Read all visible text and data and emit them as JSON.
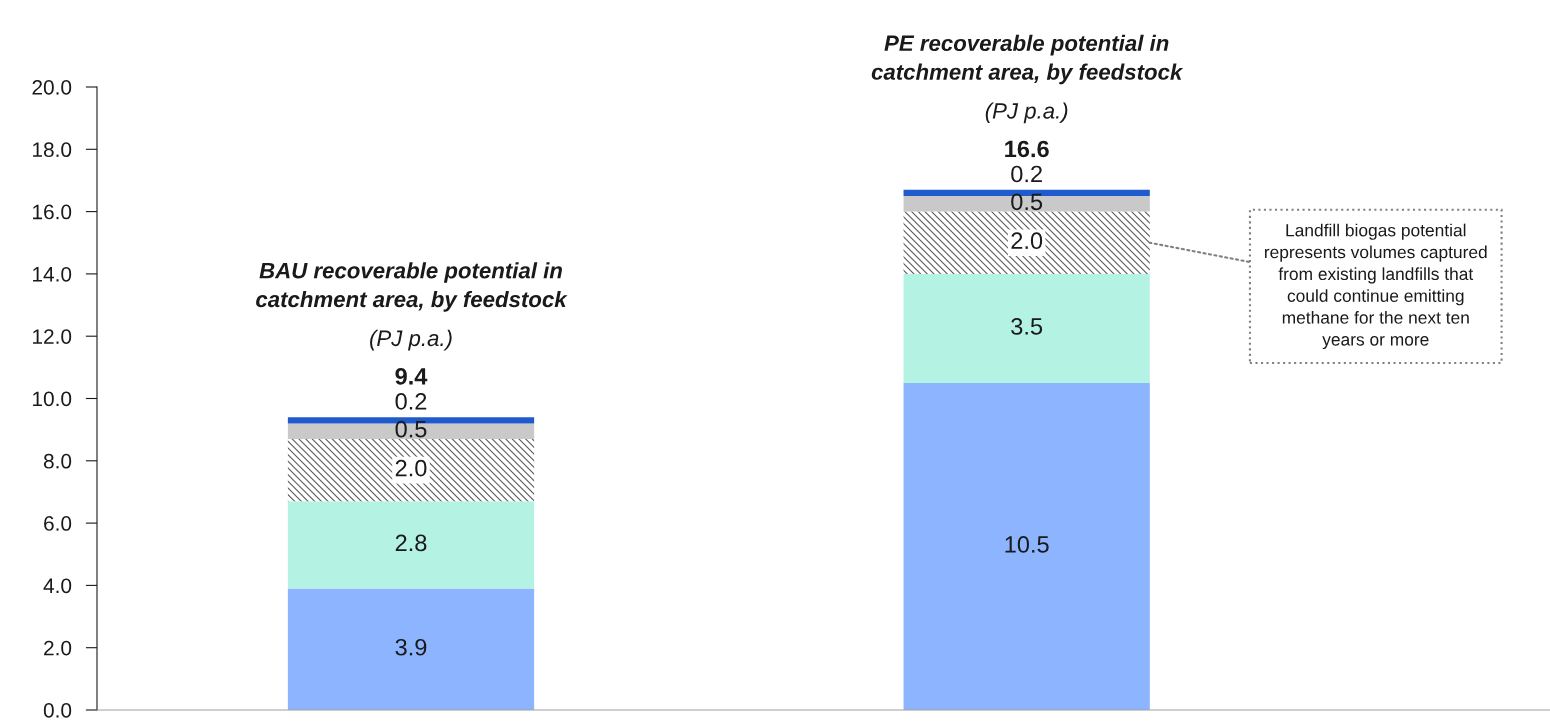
{
  "chart_data": {
    "type": "bar",
    "stacked": true,
    "categories": [
      null,
      null
    ],
    "series": [
      {
        "color": "#8cb4ff",
        "values": [
          3.9,
          10.5
        ],
        "value_labels": [
          "3.9",
          "10.5"
        ]
      },
      {
        "color": "#b4f2e4",
        "values": [
          2.8,
          3.5
        ],
        "value_labels": [
          "2.8",
          "3.5"
        ]
      },
      {
        "color": "#595959",
        "values": [
          2.0,
          2.0
        ],
        "value_labels": [
          "2.0",
          "2.0"
        ]
      },
      {
        "color": "#c9c9c9",
        "values": [
          0.5,
          0.5
        ],
        "value_labels": [
          "0.5",
          "0.5"
        ]
      },
      {
        "color": "#1f5bcc",
        "values": [
          0.2,
          0.2
        ],
        "value_labels": [
          "0.2",
          "0.2"
        ]
      }
    ],
    "totals": [
      "9.4",
      "16.6"
    ],
    "ylim": [
      0,
      20
    ],
    "yticks": [
      {
        "value": 0,
        "label": "0.0"
      },
      {
        "value": 2,
        "label": "2.0"
      },
      {
        "value": 4,
        "label": "4.0"
      },
      {
        "value": 6,
        "label": "6.0"
      },
      {
        "value": 8,
        "label": "8.0"
      },
      {
        "value": 10,
        "label": "10.0"
      },
      {
        "value": 12,
        "label": "12.0"
      },
      {
        "value": 14,
        "label": "14.0"
      },
      {
        "value": 16,
        "label": "16.0"
      },
      {
        "value": 18,
        "label": "18.0"
      },
      {
        "value": 20,
        "label": "20.0"
      }
    ],
    "grid": false,
    "legend": false,
    "annotations": [
      "BAU recoverable potential in\ncatchment area, by feedstock",
      "(PJ p.a.)",
      "PE recoverable potential in\ncatchment area, by feedstock",
      "(PJ p.a.)",
      "Landfill biogas potential\nrepresents volumes captured\nfrom existing landfills that\ncould continue emitting\nmethane for the next ten\nyears or more"
    ]
  }
}
